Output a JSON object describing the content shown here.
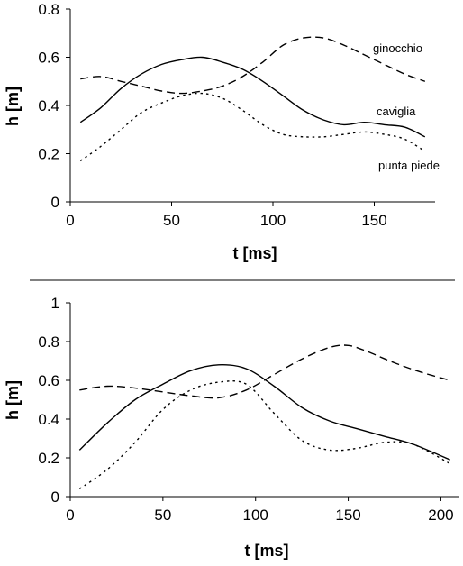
{
  "chart_data": [
    {
      "type": "line",
      "xlabel": "t [ms]",
      "ylabel": "h [m]",
      "xlim": [
        0,
        180
      ],
      "ylim": [
        0,
        0.8
      ],
      "xticks": [
        0,
        50,
        100,
        150
      ],
      "yticks": [
        0,
        0.2,
        0.4,
        0.6,
        0.8
      ],
      "xtick_labels": [
        "0",
        "50",
        "100",
        "150"
      ],
      "ytick_labels": [
        "0",
        "0.2",
        "0.4",
        "0.6",
        "0.8"
      ],
      "grid": false,
      "series": [
        {
          "name": "ginocchio",
          "style": "long-dash",
          "x": [
            5,
            15,
            25,
            35,
            45,
            55,
            65,
            75,
            85,
            95,
            105,
            115,
            125,
            135,
            145,
            155,
            165,
            175
          ],
          "y": [
            0.51,
            0.52,
            0.5,
            0.48,
            0.46,
            0.45,
            0.46,
            0.48,
            0.52,
            0.58,
            0.65,
            0.68,
            0.68,
            0.65,
            0.61,
            0.57,
            0.53,
            0.5
          ]
        },
        {
          "name": "caviglia",
          "style": "solid",
          "x": [
            5,
            15,
            25,
            35,
            45,
            55,
            65,
            75,
            85,
            95,
            105,
            115,
            125,
            135,
            145,
            155,
            165,
            175
          ],
          "y": [
            0.33,
            0.39,
            0.47,
            0.53,
            0.57,
            0.59,
            0.6,
            0.58,
            0.55,
            0.5,
            0.44,
            0.38,
            0.34,
            0.32,
            0.33,
            0.32,
            0.31,
            0.27
          ]
        },
        {
          "name": "punta piede",
          "style": "dotted",
          "x": [
            5,
            15,
            25,
            35,
            45,
            55,
            65,
            75,
            85,
            95,
            105,
            115,
            125,
            135,
            145,
            155,
            165,
            175
          ],
          "y": [
            0.17,
            0.23,
            0.3,
            0.37,
            0.41,
            0.44,
            0.45,
            0.43,
            0.38,
            0.32,
            0.28,
            0.27,
            0.27,
            0.28,
            0.29,
            0.28,
            0.26,
            0.21
          ]
        }
      ]
    },
    {
      "type": "line",
      "xlabel": "t [ms]",
      "ylabel": "h [m]",
      "xlim": [
        0,
        210
      ],
      "ylim": [
        0,
        1
      ],
      "xticks": [
        0,
        50,
        100,
        150,
        200
      ],
      "yticks": [
        0,
        0.2,
        0.4,
        0.6,
        0.8,
        1
      ],
      "xtick_labels": [
        "0",
        "50",
        "100",
        "150",
        "200"
      ],
      "ytick_labels": [
        "0",
        "0.2",
        "0.4",
        "0.6",
        "0.8",
        "1"
      ],
      "grid": false,
      "series": [
        {
          "style": "long-dash",
          "x": [
            5,
            20,
            35,
            50,
            65,
            80,
            95,
            110,
            125,
            140,
            150,
            160,
            175,
            190,
            205
          ],
          "y": [
            0.55,
            0.57,
            0.56,
            0.54,
            0.52,
            0.51,
            0.55,
            0.63,
            0.71,
            0.77,
            0.78,
            0.75,
            0.69,
            0.64,
            0.6
          ]
        },
        {
          "style": "solid",
          "x": [
            5,
            20,
            35,
            50,
            65,
            80,
            95,
            110,
            125,
            140,
            155,
            170,
            185,
            205
          ],
          "y": [
            0.24,
            0.38,
            0.5,
            0.58,
            0.65,
            0.68,
            0.66,
            0.57,
            0.46,
            0.39,
            0.35,
            0.31,
            0.27,
            0.19
          ]
        },
        {
          "style": "dotted",
          "x": [
            5,
            20,
            35,
            50,
            65,
            80,
            95,
            110,
            125,
            140,
            155,
            170,
            185,
            205
          ],
          "y": [
            0.04,
            0.14,
            0.28,
            0.45,
            0.55,
            0.59,
            0.58,
            0.43,
            0.29,
            0.24,
            0.25,
            0.28,
            0.27,
            0.17
          ]
        }
      ]
    }
  ]
}
